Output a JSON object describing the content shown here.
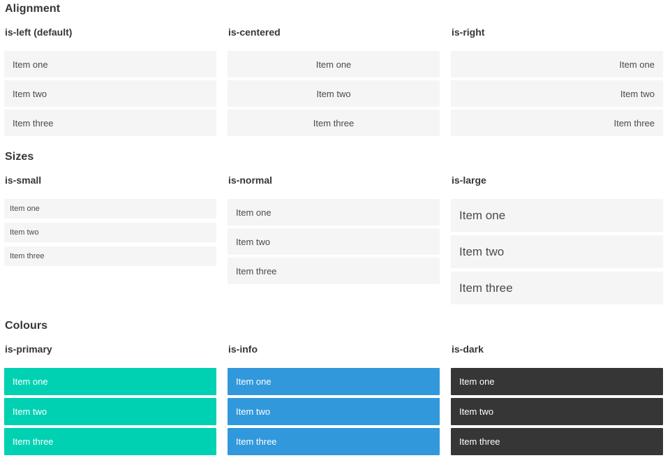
{
  "colors": {
    "primary": "#00d1b2",
    "info": "#3298dc",
    "dark": "#363636",
    "item_bg": "#f5f5f5",
    "item_text": "#4a4a4a",
    "heading_text": "#363636",
    "coloured_item_text": "#ffffff"
  },
  "page": {
    "sections": [
      {
        "title": "Alignment",
        "columns": [
          {
            "heading": "is-left (default)",
            "items": [
              "Item one",
              "Item two",
              "Item three"
            ]
          },
          {
            "heading": "is-centered",
            "items": [
              "Item one",
              "Item two",
              "Item three"
            ]
          },
          {
            "heading": "is-right",
            "items": [
              "Item one",
              "Item two",
              "Item three"
            ]
          }
        ]
      },
      {
        "title": "Sizes",
        "columns": [
          {
            "heading": "is-small",
            "items": [
              "Item one",
              "Item two",
              "Item three"
            ]
          },
          {
            "heading": "is-normal",
            "items": [
              "Item one",
              "Item two",
              "Item three"
            ]
          },
          {
            "heading": "is-large",
            "items": [
              "Item one",
              "Item two",
              "Item three"
            ]
          }
        ]
      },
      {
        "title": "Colours",
        "columns": [
          {
            "heading": "is-primary",
            "items": [
              "Item one",
              "Item two",
              "Item three"
            ]
          },
          {
            "heading": "is-info",
            "items": [
              "Item one",
              "Item two",
              "Item three"
            ]
          },
          {
            "heading": "is-dark",
            "items": [
              "Item one",
              "Item two",
              "Item three"
            ]
          }
        ]
      }
    ]
  }
}
